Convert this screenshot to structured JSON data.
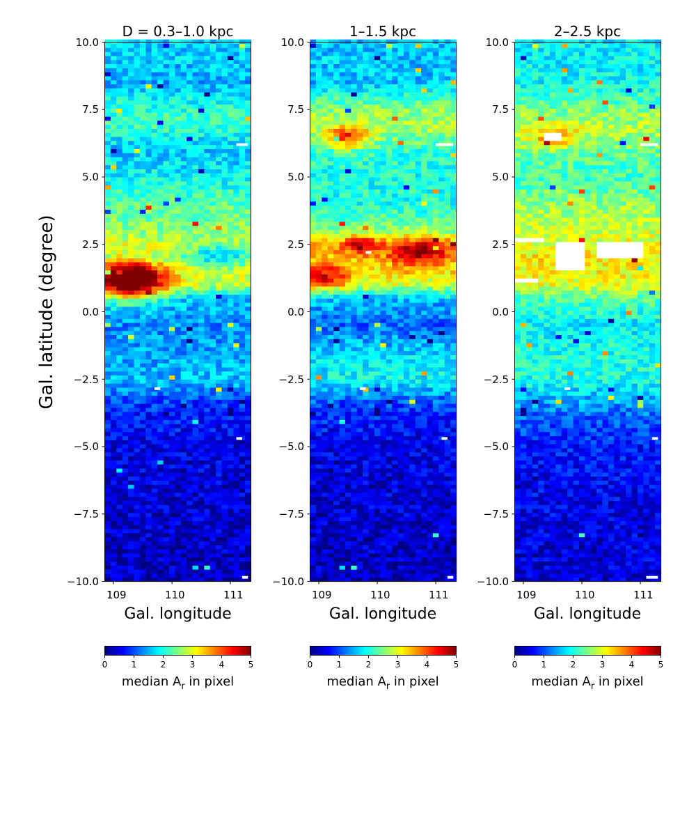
{
  "figure": {
    "ylabel": "Gal. latitude  (degree)",
    "colormap": "jet",
    "colormap_stops": [
      "#00007f",
      "#0000ff",
      "#007fff",
      "#00ffff",
      "#7fff7f",
      "#ffff00",
      "#ff7f00",
      "#ff0000",
      "#7f0000"
    ],
    "missing_color": "#ffffff"
  },
  "chart_data": [
    {
      "type": "heatmap",
      "title": "D = 0.3–1.0 kpc",
      "xlabel": "Gal. longitude",
      "ylabel": "Gal. latitude  (degree)",
      "xlim": [
        108.85,
        111.35
      ],
      "ylim": [
        -10.0,
        10.0
      ],
      "xticks": [
        "109",
        "110",
        "111"
      ],
      "yticks": [
        "−10.0",
        "−7.5",
        "−5.0",
        "−2.5",
        "0.0",
        "2.5",
        "5.0",
        "7.5",
        "10.0"
      ],
      "grid": false,
      "colorbar": {
        "label": "median A_r in pixel",
        "range": [
          0,
          5
        ],
        "ticks": [
          "0",
          "1",
          "2",
          "3",
          "4",
          "5"
        ]
      },
      "profile": [
        {
          "b": -10.0,
          "A": 0.3
        },
        {
          "b": -7.5,
          "A": 0.4
        },
        {
          "b": -5.0,
          "A": 0.5
        },
        {
          "b": -3.5,
          "A": 0.8
        },
        {
          "b": -2.5,
          "A": 1.6
        },
        {
          "b": -1.5,
          "A": 1.4
        },
        {
          "b": -0.5,
          "A": 1.3
        },
        {
          "b": 0.5,
          "A": 1.6
        },
        {
          "b": 1.0,
          "A": 2.8
        },
        {
          "b": 1.5,
          "A": 2.9
        },
        {
          "b": 2.0,
          "A": 2.3
        },
        {
          "b": 2.5,
          "A": 2.9
        },
        {
          "b": 3.0,
          "A": 2.6
        },
        {
          "b": 4.0,
          "A": 2.3
        },
        {
          "b": 5.0,
          "A": 1.9
        },
        {
          "b": 6.0,
          "A": 1.6
        },
        {
          "b": 7.0,
          "A": 2.2
        },
        {
          "b": 7.5,
          "A": 2.1
        },
        {
          "b": 8.5,
          "A": 1.5
        },
        {
          "b": 10.0,
          "A": 1.7
        }
      ],
      "features": [
        {
          "l": 109.3,
          "b": 1.2,
          "A": 3.3,
          "sl": 0.4,
          "sb": 0.5
        },
        {
          "l": 110.8,
          "b": 2.2,
          "A": -0.8,
          "sl": 0.3,
          "sb": 0.3
        }
      ],
      "blank_cells": [
        [
          111.15,
          6.2
        ],
        [
          111.25,
          6.2
        ],
        [
          111.15,
          -4.7
        ],
        [
          111.25,
          -9.85
        ],
        [
          109.75,
          -2.85
        ]
      ]
    },
    {
      "type": "heatmap",
      "title": "1–1.5 kpc",
      "xlabel": "Gal. longitude",
      "xlim": [
        108.85,
        111.35
      ],
      "ylim": [
        -10.0,
        10.0
      ],
      "xticks": [
        "109",
        "110",
        "111"
      ],
      "yticks": [
        "−10.0",
        "−7.5",
        "−5.0",
        "−2.5",
        "0.0",
        "2.5",
        "5.0",
        "7.5",
        "10.0"
      ],
      "grid": false,
      "colorbar": {
        "label": "median A_r in pixel",
        "range": [
          0,
          5
        ],
        "ticks": [
          "0",
          "1",
          "2",
          "3",
          "4",
          "5"
        ]
      },
      "profile": [
        {
          "b": -10.0,
          "A": 0.3
        },
        {
          "b": -7.5,
          "A": 0.4
        },
        {
          "b": -5.0,
          "A": 0.5
        },
        {
          "b": -3.5,
          "A": 0.9
        },
        {
          "b": -2.5,
          "A": 1.9
        },
        {
          "b": -1.5,
          "A": 1.7
        },
        {
          "b": -0.5,
          "A": 1.1
        },
        {
          "b": 0.5,
          "A": 1.6
        },
        {
          "b": 1.0,
          "A": 2.9
        },
        {
          "b": 1.5,
          "A": 3.2
        },
        {
          "b": 2.0,
          "A": 3.3
        },
        {
          "b": 2.5,
          "A": 3.6
        },
        {
          "b": 3.0,
          "A": 2.6
        },
        {
          "b": 4.0,
          "A": 2.0
        },
        {
          "b": 5.0,
          "A": 2.0
        },
        {
          "b": 6.0,
          "A": 2.1
        },
        {
          "b": 6.8,
          "A": 2.7
        },
        {
          "b": 7.5,
          "A": 2.6
        },
        {
          "b": 8.5,
          "A": 1.6
        },
        {
          "b": 10.0,
          "A": 1.6
        }
      ],
      "features": [
        {
          "l": 110.7,
          "b": 2.2,
          "A": 1.5,
          "sl": 0.35,
          "sb": 0.35
        },
        {
          "l": 109.7,
          "b": 2.5,
          "A": 1.2,
          "sl": 0.2,
          "sb": 0.25
        },
        {
          "l": 109.1,
          "b": 1.3,
          "A": 1.4,
          "sl": 0.3,
          "sb": 0.3
        },
        {
          "l": 109.5,
          "b": 6.5,
          "A": 1.7,
          "sl": 0.25,
          "sb": 0.3
        }
      ],
      "blank_cells": [
        [
          111.05,
          6.2
        ],
        [
          111.15,
          6.2
        ],
        [
          111.25,
          6.2
        ],
        [
          111.15,
          -4.7
        ],
        [
          111.25,
          -9.85
        ],
        [
          109.75,
          -2.85
        ],
        [
          109.85,
          2.2
        ]
      ]
    },
    {
      "type": "heatmap",
      "title": "2–2.5 kpc",
      "xlabel": "Gal. longitude",
      "xlim": [
        108.85,
        111.35
      ],
      "ylim": [
        -10.0,
        10.0
      ],
      "xticks": [
        "109",
        "110",
        "111"
      ],
      "yticks": [
        "−10.0",
        "−7.5",
        "−5.0",
        "−2.5",
        "0.0",
        "2.5",
        "5.0",
        "7.5",
        "10.0"
      ],
      "grid": false,
      "colorbar": {
        "label": "median A_r in pixel",
        "range": [
          0,
          5
        ],
        "ticks": [
          "0",
          "1",
          "2",
          "3",
          "4",
          "5"
        ]
      },
      "profile": [
        {
          "b": -10.0,
          "A": 0.4
        },
        {
          "b": -7.5,
          "A": 0.5
        },
        {
          "b": -5.0,
          "A": 0.7
        },
        {
          "b": -3.5,
          "A": 1.3
        },
        {
          "b": -2.5,
          "A": 2.0
        },
        {
          "b": -1.5,
          "A": 2.0
        },
        {
          "b": -0.5,
          "A": 1.8
        },
        {
          "b": 0.5,
          "A": 2.3
        },
        {
          "b": 1.0,
          "A": 3.0
        },
        {
          "b": 1.5,
          "A": 3.1
        },
        {
          "b": 2.0,
          "A": 3.2
        },
        {
          "b": 2.5,
          "A": 3.0
        },
        {
          "b": 3.0,
          "A": 2.9
        },
        {
          "b": 4.0,
          "A": 2.6
        },
        {
          "b": 5.0,
          "A": 2.2
        },
        {
          "b": 6.0,
          "A": 2.4
        },
        {
          "b": 6.8,
          "A": 2.8
        },
        {
          "b": 7.5,
          "A": 2.5
        },
        {
          "b": 8.5,
          "A": 1.9
        },
        {
          "b": 10.0,
          "A": 1.8
        }
      ],
      "features": [
        {
          "l": 109.5,
          "b": 6.5,
          "A": 1.0,
          "sl": 0.3,
          "sb": 0.3
        }
      ],
      "blank_regions": [
        {
          "l0": 109.55,
          "l1": 110.05,
          "b0": 1.5,
          "b1": 2.55
        },
        {
          "l0": 110.25,
          "l1": 111.0,
          "b0": 2.05,
          "b1": 2.6
        },
        {
          "l0": 108.85,
          "l1": 109.2,
          "b0": 1.05,
          "b1": 1.3
        },
        {
          "l0": 108.85,
          "l1": 109.3,
          "b0": 2.6,
          "b1": 2.75
        },
        {
          "l0": 109.35,
          "l1": 109.65,
          "b0": 6.4,
          "b1": 6.6
        }
      ],
      "blank_cells": [
        [
          111.05,
          6.2
        ],
        [
          111.15,
          6.2
        ],
        [
          111.25,
          6.2
        ],
        [
          111.25,
          -4.7
        ],
        [
          111.15,
          -9.85
        ],
        [
          111.25,
          -9.85
        ],
        [
          109.75,
          -2.85
        ],
        [
          110.55,
          2.2
        ]
      ]
    }
  ]
}
